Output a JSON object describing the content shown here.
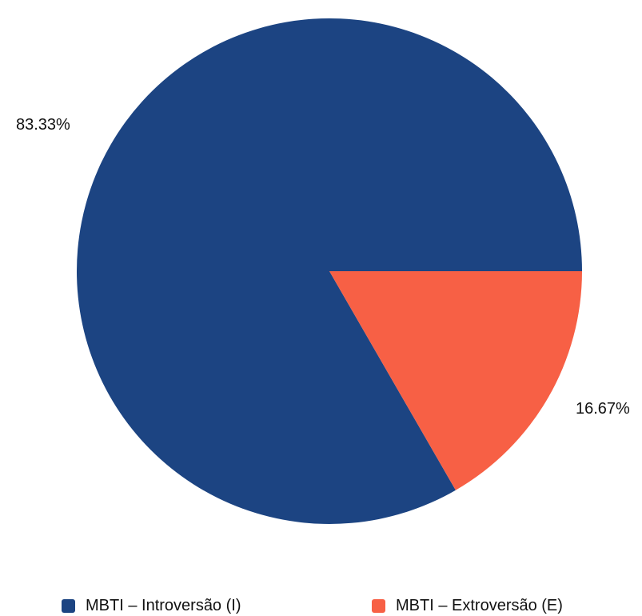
{
  "chart_data": {
    "type": "pie",
    "title": "",
    "categories": [
      "MBTI – Introversão (I)",
      "MBTI – Extroversão (E)"
    ],
    "values": [
      83.33,
      16.67
    ],
    "labels": [
      "83.33%",
      "16.67%"
    ],
    "colors": [
      "#1c4482",
      "#f76045"
    ],
    "legend": {
      "position": "bottom",
      "entries": [
        "MBTI – Introversão (I)",
        "MBTI – Extroversão (E)"
      ]
    }
  }
}
